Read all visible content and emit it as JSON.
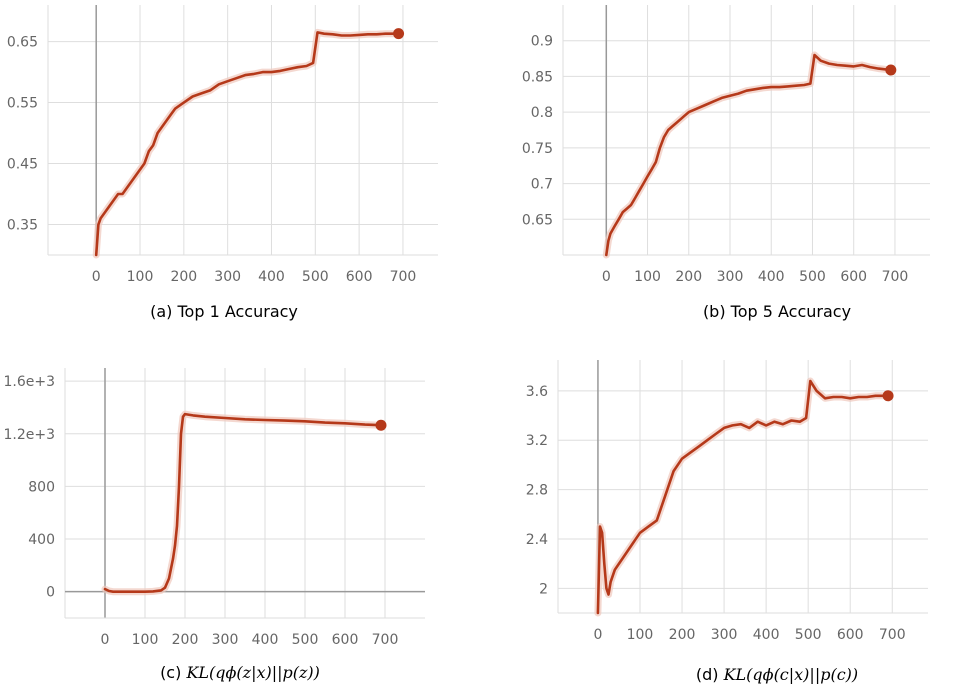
{
  "theme": {
    "series_color": "#b5391a",
    "raw_color": "#efc7bc",
    "grid_color": "#dedede",
    "zero_line_color": "#999999",
    "tick_color": "#666666"
  },
  "chart_data": [
    {
      "type": "line",
      "caption": "(a) Top 1 Accuracy",
      "xticks": [
        "0",
        "100",
        "200",
        "300",
        "400",
        "500",
        "600",
        "700"
      ],
      "yticks": [
        "0.35",
        "0.45",
        "0.55",
        "0.65"
      ],
      "xlim": [
        -110,
        780
      ],
      "ylim": [
        0.3,
        0.71
      ],
      "grid": true,
      "series": [
        {
          "x": [
            0,
            5,
            10,
            20,
            30,
            40,
            50,
            60,
            70,
            80,
            90,
            100,
            110,
            120,
            130,
            140,
            150,
            160,
            170,
            180,
            190,
            200,
            220,
            240,
            260,
            280,
            300,
            320,
            340,
            360,
            380,
            400,
            420,
            440,
            460,
            480,
            495,
            505,
            520,
            540,
            560,
            580,
            600,
            620,
            640,
            660,
            690
          ],
          "y": [
            0.3,
            0.35,
            0.36,
            0.37,
            0.38,
            0.39,
            0.4,
            0.4,
            0.41,
            0.42,
            0.43,
            0.44,
            0.45,
            0.47,
            0.48,
            0.5,
            0.51,
            0.52,
            0.53,
            0.54,
            0.545,
            0.55,
            0.56,
            0.565,
            0.57,
            0.58,
            0.585,
            0.59,
            0.595,
            0.597,
            0.6,
            0.6,
            0.602,
            0.605,
            0.608,
            0.61,
            0.615,
            0.665,
            0.663,
            0.662,
            0.66,
            0.66,
            0.661,
            0.662,
            0.662,
            0.663,
            0.663
          ]
        }
      ]
    },
    {
      "type": "line",
      "caption": "(b) Top 5 Accuracy",
      "xticks": [
        "0",
        "100",
        "200",
        "300",
        "400",
        "500",
        "600",
        "700"
      ],
      "yticks": [
        "0.65",
        "0.7",
        "0.75",
        "0.8",
        "0.85",
        "0.9"
      ],
      "xlim": [
        -105,
        785
      ],
      "ylim": [
        0.6,
        0.95
      ],
      "grid": true,
      "series": [
        {
          "x": [
            0,
            5,
            10,
            20,
            30,
            40,
            50,
            60,
            70,
            80,
            90,
            100,
            110,
            120,
            130,
            140,
            150,
            160,
            170,
            180,
            190,
            200,
            220,
            240,
            260,
            280,
            300,
            320,
            340,
            360,
            380,
            400,
            420,
            440,
            460,
            480,
            495,
            505,
            520,
            540,
            560,
            580,
            600,
            620,
            640,
            660,
            690
          ],
          "y": [
            0.6,
            0.62,
            0.63,
            0.64,
            0.65,
            0.66,
            0.665,
            0.67,
            0.68,
            0.69,
            0.7,
            0.71,
            0.72,
            0.73,
            0.75,
            0.765,
            0.775,
            0.78,
            0.785,
            0.79,
            0.795,
            0.8,
            0.805,
            0.81,
            0.815,
            0.82,
            0.823,
            0.826,
            0.83,
            0.832,
            0.834,
            0.835,
            0.835,
            0.836,
            0.837,
            0.838,
            0.84,
            0.88,
            0.872,
            0.868,
            0.866,
            0.865,
            0.864,
            0.866,
            0.863,
            0.861,
            0.859
          ]
        }
      ]
    },
    {
      "type": "line",
      "caption_parts": {
        "prefix": "(c) ",
        "text": "KL(qϕ(z|x)||p(z))"
      },
      "xticks": [
        "0",
        "100",
        "200",
        "300",
        "400",
        "500",
        "600",
        "700"
      ],
      "yticks": [
        "0",
        "400",
        "800",
        "1.2e+3",
        "1.6e+3"
      ],
      "xlim": [
        -100,
        800
      ],
      "ylim": [
        -200,
        1700
      ],
      "grid": true,
      "series": [
        {
          "x": [
            0,
            10,
            20,
            40,
            60,
            80,
            100,
            120,
            140,
            150,
            160,
            170,
            175,
            180,
            185,
            190,
            195,
            200,
            220,
            250,
            300,
            350,
            400,
            450,
            500,
            550,
            600,
            650,
            690
          ],
          "y": [
            20,
            5,
            0,
            0,
            0,
            0,
            0,
            2,
            10,
            30,
            100,
            250,
            350,
            500,
            800,
            1200,
            1330,
            1350,
            1340,
            1330,
            1320,
            1310,
            1305,
            1300,
            1295,
            1285,
            1280,
            1270,
            1265
          ]
        }
      ]
    },
    {
      "type": "line",
      "caption_parts": {
        "prefix": "(d) ",
        "text": "KL(qϕ(c|x)||p(c))"
      },
      "xticks": [
        "0",
        "100",
        "200",
        "300",
        "400",
        "500",
        "600",
        "700"
      ],
      "yticks": [
        "2",
        "2.4",
        "2.8",
        "3.2",
        "3.6"
      ],
      "xlim": [
        -95,
        785
      ],
      "ylim": [
        1.8,
        3.85
      ],
      "grid": true,
      "series": [
        {
          "x": [
            0,
            5,
            10,
            15,
            20,
            25,
            30,
            40,
            50,
            60,
            80,
            100,
            120,
            140,
            160,
            180,
            200,
            220,
            240,
            260,
            280,
            300,
            320,
            340,
            360,
            380,
            400,
            420,
            440,
            460,
            480,
            495,
            505,
            520,
            540,
            560,
            580,
            600,
            620,
            640,
            660,
            690
          ],
          "y": [
            1.8,
            2.5,
            2.45,
            2.2,
            2.0,
            1.95,
            2.05,
            2.15,
            2.2,
            2.25,
            2.35,
            2.45,
            2.5,
            2.55,
            2.75,
            2.95,
            3.05,
            3.1,
            3.15,
            3.2,
            3.25,
            3.3,
            3.32,
            3.33,
            3.3,
            3.35,
            3.32,
            3.35,
            3.33,
            3.36,
            3.35,
            3.38,
            3.68,
            3.6,
            3.54,
            3.55,
            3.55,
            3.54,
            3.55,
            3.55,
            3.56,
            3.56
          ]
        }
      ]
    }
  ]
}
